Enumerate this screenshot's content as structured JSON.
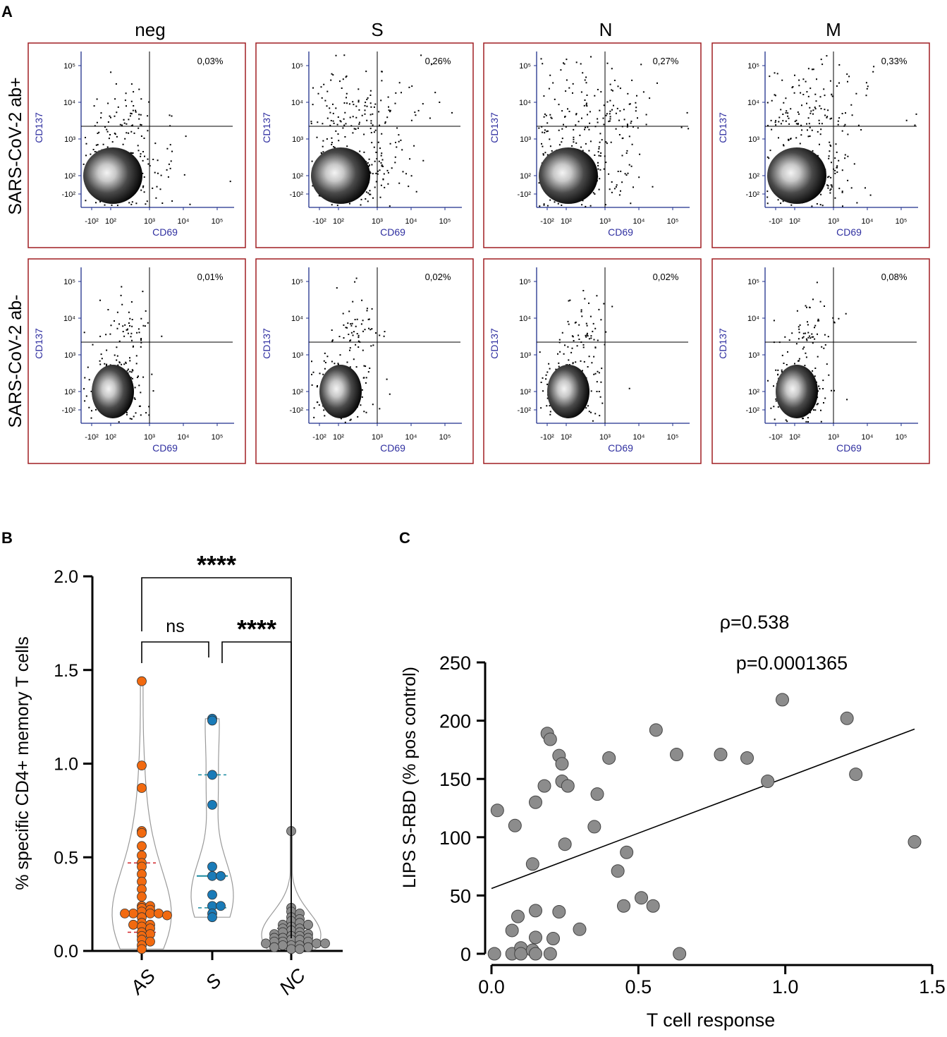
{
  "colors": {
    "panel_border": "#a01e22",
    "axis_blue": "#1f2f8c",
    "label_blue": "#2f2fa0",
    "orange": "#f26a10",
    "blue": "#1a7bb8",
    "grey": "#8c8c8c",
    "median_red": "#d3242a",
    "quartile_teal": "#1a8aa0"
  },
  "panel_a": {
    "letter": "A",
    "columns": [
      "neg",
      "S",
      "N",
      "M"
    ],
    "rows": [
      "SARS-CoV-2 ab+",
      "SARS-CoV-2 ab-"
    ],
    "x_axis_label": "CD69",
    "y_axis_label": "CD137",
    "x_ticks": [
      "-10²",
      "10²",
      "10³",
      "10⁴",
      "10⁵"
    ],
    "y_ticks": [
      "10⁵",
      "10⁴",
      "10³",
      "10²",
      "-10²"
    ],
    "percentages": [
      [
        "0,03%",
        "0,26%",
        "0,27%",
        "0,33%"
      ],
      [
        "0,01%",
        "0,02%",
        "0,02%",
        "0,08%"
      ]
    ]
  },
  "panel_b": {
    "letter": "B",
    "chart_data": {
      "type": "violin-scatter",
      "title": "",
      "ylabel": "% specific CD4+ memory T cells",
      "xlabel": "",
      "ylim": [
        0,
        2.0
      ],
      "yticks": [
        "0.0",
        "0.5",
        "1.0",
        "1.5",
        "2.0"
      ],
      "categories": [
        "AS",
        "S",
        "NC"
      ],
      "series": [
        {
          "name": "AS",
          "color": "orange",
          "median": 0.2,
          "q1": 0.1,
          "q3": 0.47,
          "values": [
            1.44,
            0.99,
            0.87,
            0.64,
            0.63,
            0.56,
            0.51,
            0.47,
            0.45,
            0.41,
            0.37,
            0.33,
            0.29,
            0.24,
            0.24,
            0.23,
            0.22,
            0.21,
            0.2,
            0.2,
            0.2,
            0.2,
            0.19,
            0.18,
            0.15,
            0.14,
            0.14,
            0.13,
            0.12,
            0.1,
            0.09,
            0.08,
            0.06,
            0.05,
            0.03,
            0.01
          ]
        },
        {
          "name": "S",
          "color": "blue",
          "median": 0.4,
          "q1": 0.23,
          "q3": 0.94,
          "values": [
            1.24,
            1.23,
            0.94,
            0.78,
            0.45,
            0.4,
            0.4,
            0.3,
            0.24,
            0.24,
            0.2,
            0.18
          ]
        },
        {
          "name": "NC",
          "color": "grey",
          "median": 0.07,
          "q1": 0.04,
          "q3": 0.12,
          "values": [
            0.64,
            0.23,
            0.21,
            0.2,
            0.18,
            0.17,
            0.16,
            0.15,
            0.14,
            0.14,
            0.13,
            0.12,
            0.12,
            0.11,
            0.1,
            0.1,
            0.09,
            0.09,
            0.08,
            0.08,
            0.07,
            0.07,
            0.07,
            0.06,
            0.06,
            0.05,
            0.05,
            0.05,
            0.04,
            0.04,
            0.04,
            0.03,
            0.03,
            0.03,
            0.02,
            0.02,
            0.01,
            0.01
          ]
        }
      ],
      "annotations": [
        {
          "pair": [
            "AS",
            "NC"
          ],
          "label": "****"
        },
        {
          "pair": [
            "AS",
            "S"
          ],
          "label": "ns"
        },
        {
          "pair": [
            "S",
            "NC"
          ],
          "label": "****"
        }
      ]
    }
  },
  "panel_c": {
    "letter": "C",
    "rho_text": "ρ=0.538",
    "p_text": "p=0.0001365",
    "chart_data": {
      "type": "scatter",
      "title": "",
      "xlabel": "T cell response",
      "ylabel": "LIPS S-RBD (% pos control)",
      "xlim": [
        0,
        1.5
      ],
      "ylim": [
        0,
        250
      ],
      "xticks": [
        "0.0",
        "0.5",
        "1.0",
        "1.5"
      ],
      "yticks": [
        "0",
        "50",
        "100",
        "150",
        "200",
        "250"
      ],
      "regression": {
        "intercept": 56,
        "slope": 95
      },
      "points": [
        {
          "x": 0.01,
          "y": 0
        },
        {
          "x": 0.02,
          "y": 123
        },
        {
          "x": 0.07,
          "y": 20
        },
        {
          "x": 0.07,
          "y": 0
        },
        {
          "x": 0.08,
          "y": 110
        },
        {
          "x": 0.09,
          "y": 32
        },
        {
          "x": 0.1,
          "y": 5
        },
        {
          "x": 0.1,
          "y": 0
        },
        {
          "x": 0.14,
          "y": 77
        },
        {
          "x": 0.14,
          "y": 3
        },
        {
          "x": 0.15,
          "y": 130
        },
        {
          "x": 0.15,
          "y": 37
        },
        {
          "x": 0.15,
          "y": 14
        },
        {
          "x": 0.15,
          "y": 0
        },
        {
          "x": 0.18,
          "y": 144
        },
        {
          "x": 0.19,
          "y": 189
        },
        {
          "x": 0.2,
          "y": 184
        },
        {
          "x": 0.2,
          "y": 0
        },
        {
          "x": 0.21,
          "y": 13
        },
        {
          "x": 0.23,
          "y": 170
        },
        {
          "x": 0.23,
          "y": 36
        },
        {
          "x": 0.24,
          "y": 163
        },
        {
          "x": 0.24,
          "y": 148
        },
        {
          "x": 0.25,
          "y": 94
        },
        {
          "x": 0.26,
          "y": 144
        },
        {
          "x": 0.3,
          "y": 21
        },
        {
          "x": 0.35,
          "y": 109
        },
        {
          "x": 0.36,
          "y": 137
        },
        {
          "x": 0.4,
          "y": 168
        },
        {
          "x": 0.43,
          "y": 71
        },
        {
          "x": 0.45,
          "y": 41
        },
        {
          "x": 0.46,
          "y": 87
        },
        {
          "x": 0.51,
          "y": 48
        },
        {
          "x": 0.55,
          "y": 41
        },
        {
          "x": 0.56,
          "y": 192
        },
        {
          "x": 0.63,
          "y": 171
        },
        {
          "x": 0.64,
          "y": 0
        },
        {
          "x": 0.78,
          "y": 171
        },
        {
          "x": 0.87,
          "y": 168
        },
        {
          "x": 0.94,
          "y": 148
        },
        {
          "x": 0.99,
          "y": 218
        },
        {
          "x": 1.21,
          "y": 202
        },
        {
          "x": 1.24,
          "y": 154
        },
        {
          "x": 1.44,
          "y": 96
        }
      ]
    }
  }
}
